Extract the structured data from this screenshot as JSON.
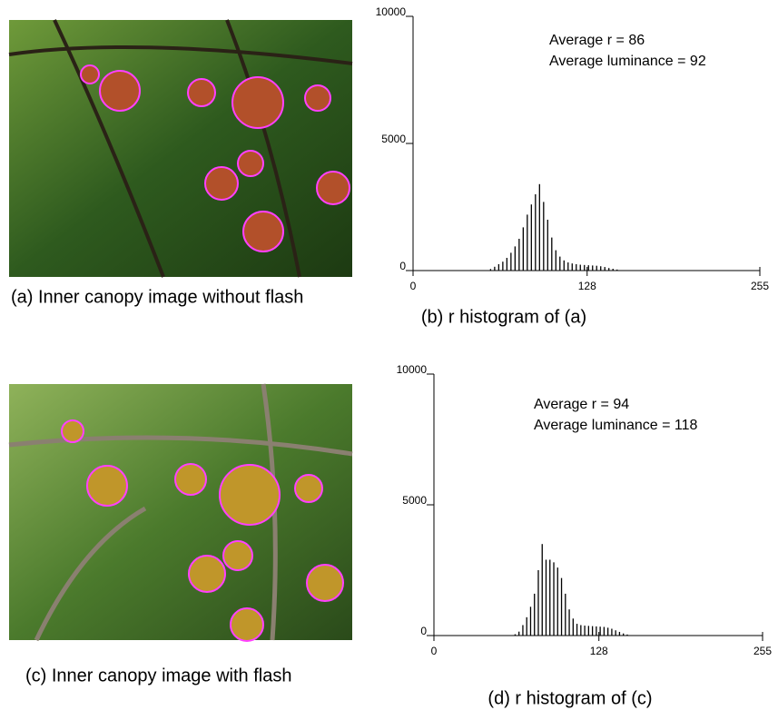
{
  "chart_data": [
    {
      "type": "bar",
      "caption": "(b) r histogram of (a)",
      "annotations": [
        "Average r = 86",
        "Average luminance = 92"
      ],
      "x": [
        57,
        60,
        63,
        66,
        69,
        72,
        75,
        78,
        81,
        84,
        87,
        90,
        93,
        96,
        99,
        102,
        105,
        108,
        111,
        114,
        117,
        120,
        123,
        126,
        129,
        132,
        135,
        138,
        141,
        144,
        147,
        150
      ],
      "values": [
        60,
        150,
        250,
        350,
        500,
        700,
        950,
        1250,
        1700,
        2200,
        2600,
        3000,
        3400,
        2700,
        2000,
        1300,
        800,
        550,
        400,
        320,
        280,
        250,
        230,
        220,
        210,
        200,
        190,
        170,
        140,
        100,
        70,
        40
      ],
      "color": "#000000",
      "xlim": [
        0,
        255
      ],
      "xticks": [
        0,
        128,
        255
      ],
      "ylim": [
        0,
        10000
      ],
      "yticks": [
        0,
        5000,
        10000
      ]
    },
    {
      "type": "bar",
      "caption": "(d) r histogram of (c)",
      "annotations": [
        "Average r = 94",
        "Average luminance = 118"
      ],
      "x": [
        63,
        66,
        69,
        72,
        75,
        78,
        81,
        84,
        87,
        90,
        93,
        96,
        99,
        102,
        105,
        108,
        111,
        114,
        117,
        120,
        123,
        126,
        129,
        132,
        135,
        138,
        141,
        144,
        147,
        150
      ],
      "values": [
        50,
        150,
        400,
        700,
        1100,
        1600,
        2500,
        3500,
        2900,
        2900,
        2800,
        2600,
        2200,
        1600,
        1000,
        650,
        450,
        400,
        380,
        370,
        360,
        350,
        340,
        330,
        300,
        260,
        200,
        140,
        80,
        40
      ],
      "color": "#000000",
      "xlim": [
        0,
        255
      ],
      "xticks": [
        0,
        128,
        255
      ],
      "ylim": [
        0,
        10000
      ],
      "yticks": [
        0,
        5000,
        10000
      ]
    }
  ],
  "images": [
    {
      "caption": "(a) Inner canopy image without flash"
    },
    {
      "caption": "(c) Inner canopy image with flash"
    }
  ]
}
